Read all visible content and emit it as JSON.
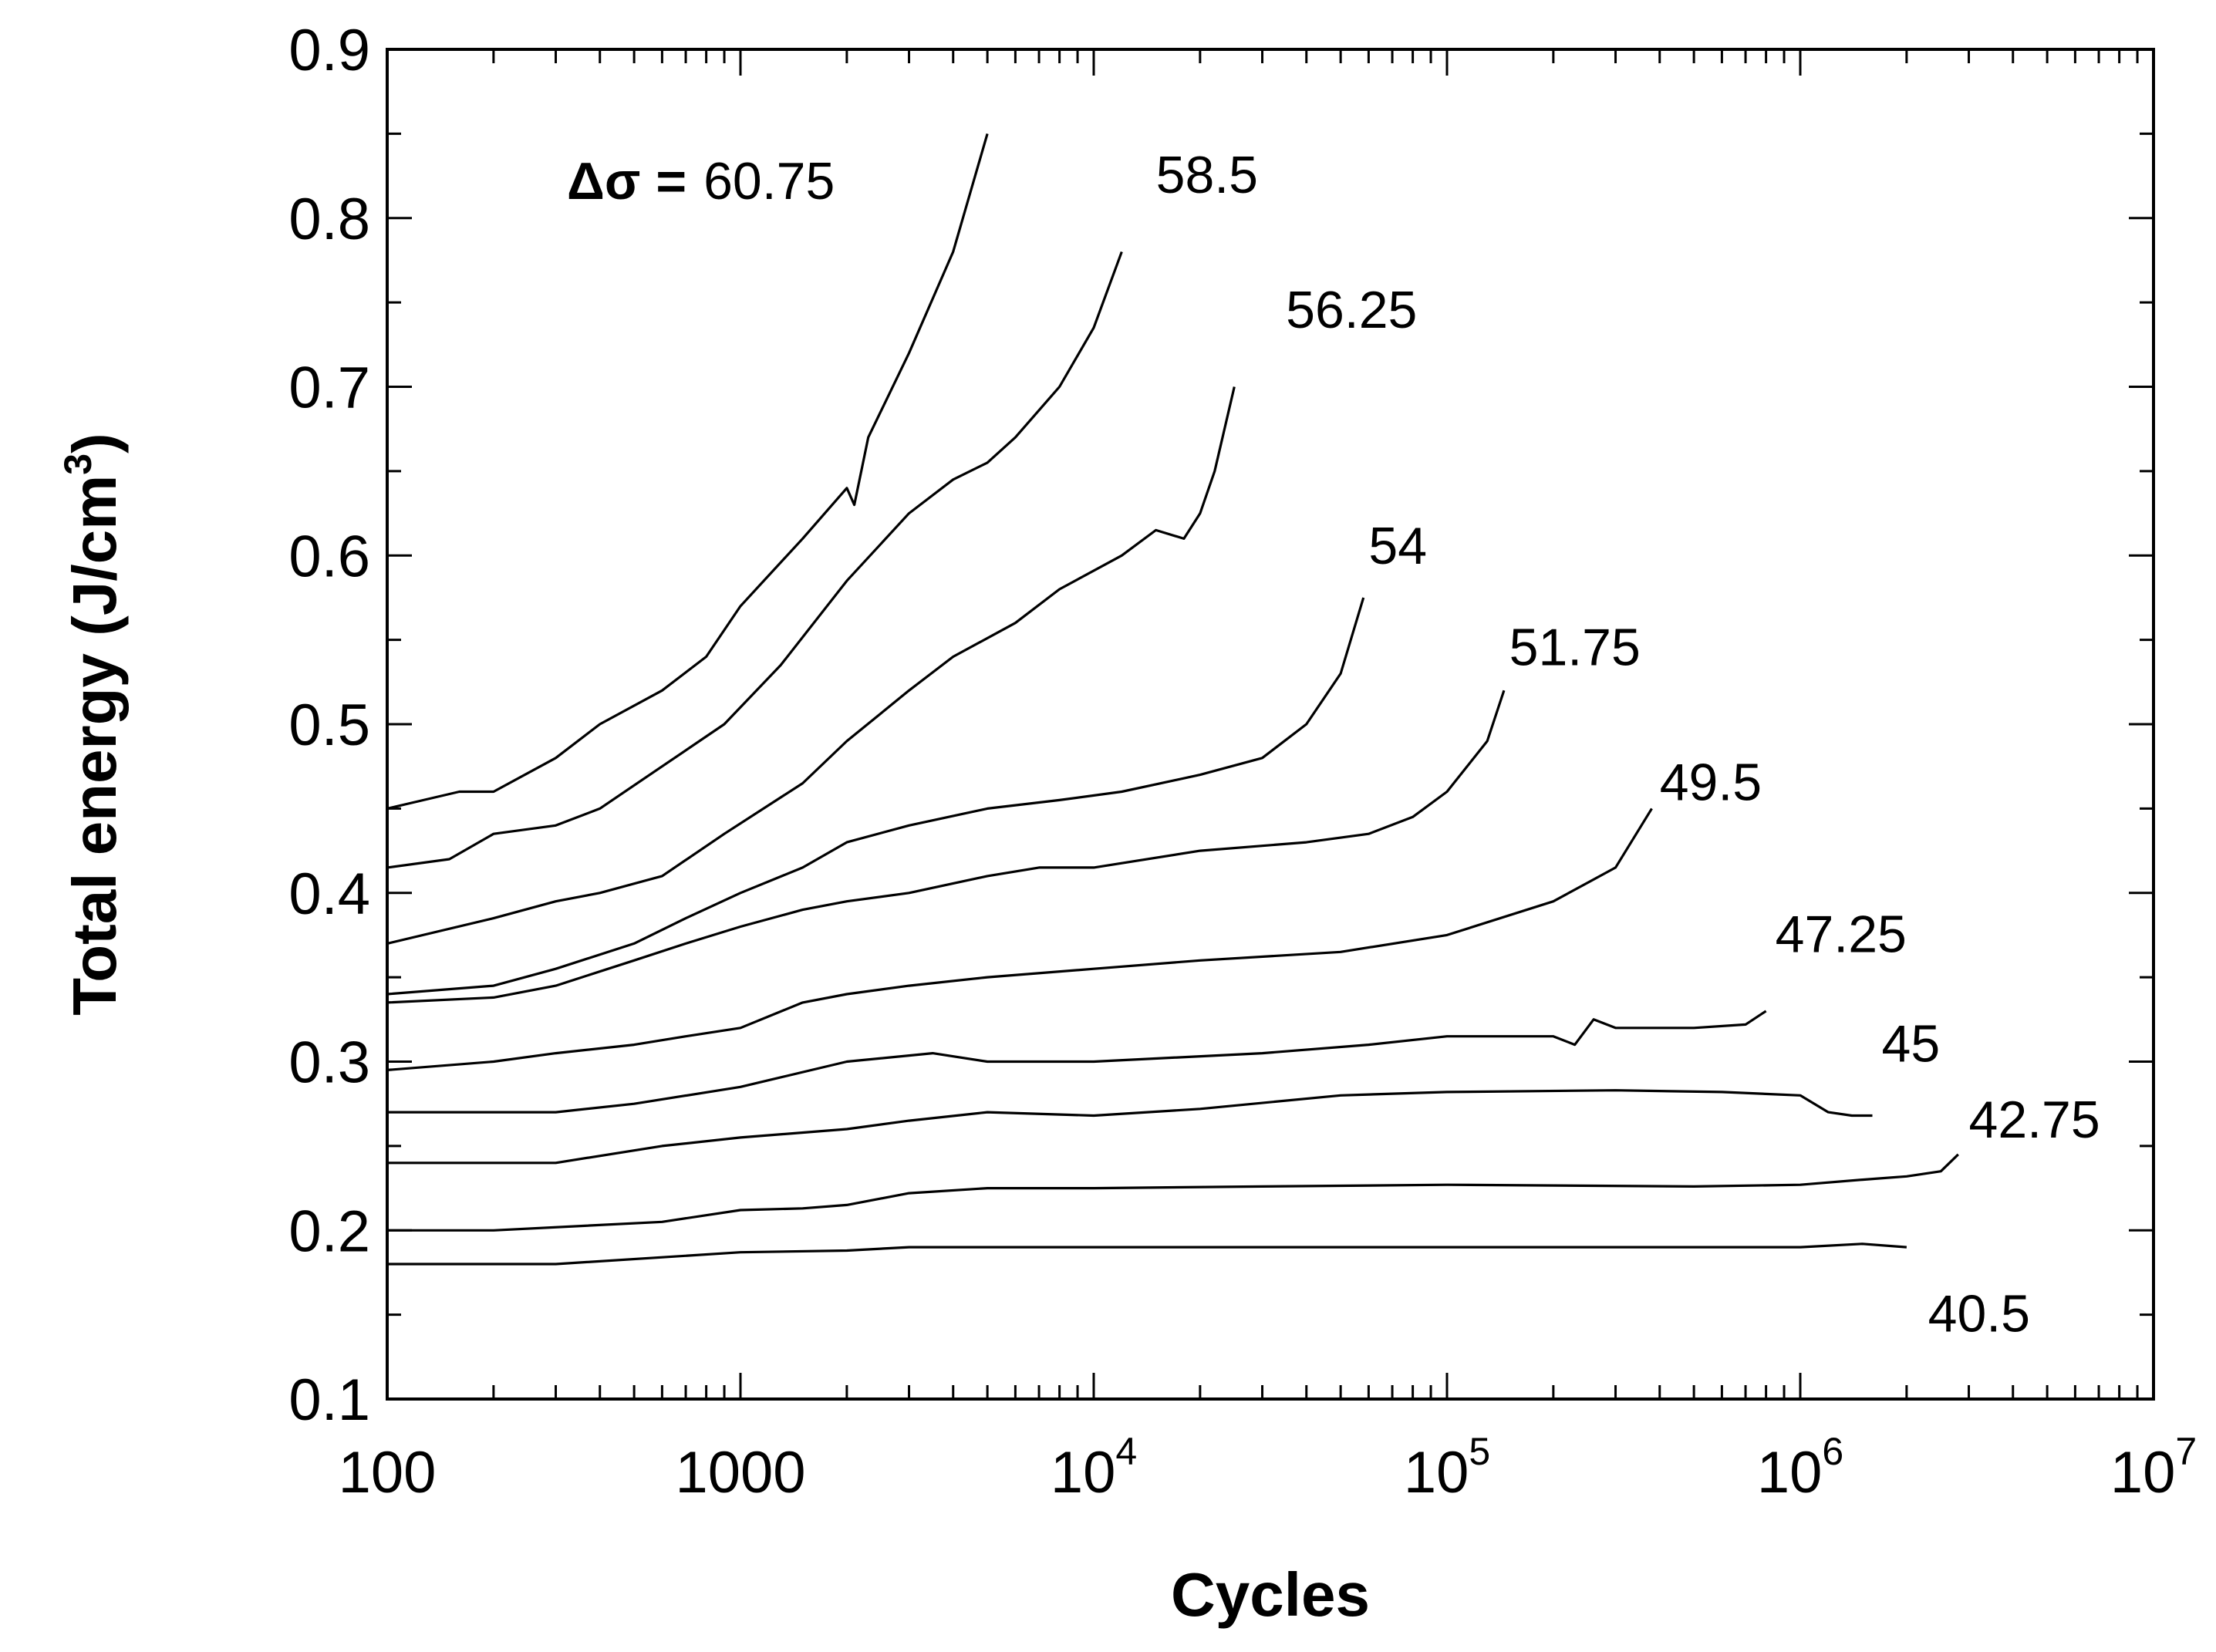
{
  "chart_data": {
    "type": "line",
    "title": "",
    "xlabel": "Cycles",
    "ylabel": "Total energy (J/cm",
    "ylabel_superscript": "3",
    "ylabel_close": ")",
    "x_scale": "log",
    "xlim": [
      100,
      10000000
    ],
    "ylim": [
      0.1,
      0.9
    ],
    "grid": false,
    "legend": "none",
    "delta_label": {
      "symbol": "Δσ",
      "equals": "="
    },
    "x_ticks": [
      {
        "value": 100,
        "mantissa": "100",
        "exponent": ""
      },
      {
        "value": 1000,
        "mantissa": "1000",
        "exponent": ""
      },
      {
        "value": 10000,
        "mantissa": "10",
        "exponent": "4"
      },
      {
        "value": 100000,
        "mantissa": "10",
        "exponent": "5"
      },
      {
        "value": 1000000,
        "mantissa": "10",
        "exponent": "6"
      },
      {
        "value": 10000000,
        "mantissa": "10",
        "exponent": "7"
      }
    ],
    "y_ticks": [
      "0.1",
      "0.2",
      "0.3",
      "0.4",
      "0.5",
      "0.6",
      "0.7",
      "0.8",
      "0.9"
    ],
    "series": [
      {
        "name": "60.75",
        "label_at": [
          130,
          0.855
        ],
        "x": [
          100,
          160,
          200,
          300,
          400,
          600,
          800,
          1000,
          1500,
          2000,
          2100,
          2300,
          3000,
          4000,
          5000
        ],
        "y": [
          0.45,
          0.46,
          0.46,
          0.48,
          0.5,
          0.52,
          0.54,
          0.57,
          0.61,
          0.64,
          0.63,
          0.67,
          0.72,
          0.78,
          0.85
        ]
      },
      {
        "name": "58.5",
        "label_at": [
          15000,
          0.815
        ],
        "x": [
          100,
          150,
          200,
          300,
          400,
          600,
          900,
          1300,
          2000,
          3000,
          4000,
          5000,
          6000,
          8000,
          10000,
          12000
        ],
        "y": [
          0.415,
          0.42,
          0.435,
          0.44,
          0.45,
          0.475,
          0.5,
          0.535,
          0.585,
          0.625,
          0.645,
          0.655,
          0.67,
          0.7,
          0.735,
          0.78
        ]
      },
      {
        "name": "56.25",
        "label_at": [
          35000,
          0.735
        ],
        "x": [
          100,
          200,
          300,
          400,
          600,
          900,
          1500,
          2000,
          3000,
          4000,
          6000,
          8000,
          12000,
          15000,
          18000,
          20000,
          22000,
          25000
        ],
        "y": [
          0.37,
          0.385,
          0.395,
          0.4,
          0.41,
          0.435,
          0.465,
          0.49,
          0.52,
          0.54,
          0.56,
          0.58,
          0.6,
          0.615,
          0.61,
          0.625,
          0.65,
          0.7
        ]
      },
      {
        "name": "54",
        "label_at": [
          60000,
          0.595
        ],
        "x": [
          100,
          200,
          300,
          500,
          700,
          1000,
          1500,
          2000,
          3000,
          5000,
          8000,
          12000,
          20000,
          30000,
          40000,
          50000,
          58000
        ],
        "y": [
          0.34,
          0.345,
          0.355,
          0.37,
          0.385,
          0.4,
          0.415,
          0.43,
          0.44,
          0.45,
          0.455,
          0.46,
          0.47,
          0.48,
          0.5,
          0.53,
          0.575
        ]
      },
      {
        "name": "51.75",
        "label_at": [
          150000,
          0.535
        ],
        "x": [
          100,
          200,
          300,
          500,
          700,
          1000,
          1500,
          2000,
          3000,
          5000,
          7000,
          10000,
          20000,
          40000,
          60000,
          80000,
          100000,
          130000,
          145000
        ],
        "y": [
          0.335,
          0.338,
          0.345,
          0.36,
          0.37,
          0.38,
          0.39,
          0.395,
          0.4,
          0.41,
          0.415,
          0.415,
          0.425,
          0.43,
          0.435,
          0.445,
          0.46,
          0.49,
          0.52
        ]
      },
      {
        "name": "49.5",
        "label_at": [
          400000,
          0.455
        ],
        "x": [
          100,
          200,
          300,
          500,
          700,
          1000,
          1500,
          2000,
          3000,
          5000,
          10000,
          20000,
          50000,
          100000,
          200000,
          300000,
          380000
        ],
        "y": [
          0.295,
          0.3,
          0.305,
          0.31,
          0.315,
          0.32,
          0.335,
          0.34,
          0.345,
          0.35,
          0.355,
          0.36,
          0.365,
          0.375,
          0.395,
          0.415,
          0.45
        ]
      },
      {
        "name": "47.25",
        "label_at": [
          850000,
          0.365
        ],
        "x": [
          100,
          300,
          500,
          1000,
          2000,
          3500,
          5000,
          10000,
          30000,
          60000,
          100000,
          200000,
          230000,
          260000,
          300000,
          500000,
          700000,
          800000
        ],
        "y": [
          0.27,
          0.27,
          0.275,
          0.285,
          0.3,
          0.305,
          0.3,
          0.3,
          0.305,
          0.31,
          0.315,
          0.315,
          0.31,
          0.325,
          0.32,
          0.32,
          0.322,
          0.33
        ]
      },
      {
        "name": "45",
        "label_at": [
          1700000,
          0.3
        ],
        "x": [
          100,
          300,
          600,
          1000,
          2000,
          3000,
          5000,
          10000,
          20000,
          50000,
          100000,
          300000,
          600000,
          1000000,
          1200000,
          1400000,
          1600000
        ],
        "y": [
          0.24,
          0.24,
          0.25,
          0.255,
          0.26,
          0.265,
          0.27,
          0.268,
          0.272,
          0.28,
          0.282,
          0.283,
          0.282,
          0.28,
          0.27,
          0.268,
          0.268
        ]
      },
      {
        "name": "42.75",
        "label_at": [
          3000000,
          0.255
        ],
        "x": [
          100,
          200,
          600,
          1000,
          1500,
          2000,
          3000,
          5000,
          10000,
          30000,
          100000,
          500000,
          1000000,
          1500000,
          2000000,
          2500000,
          2800000
        ],
        "y": [
          0.2,
          0.2,
          0.205,
          0.212,
          0.213,
          0.215,
          0.222,
          0.225,
          0.225,
          0.226,
          0.227,
          0.226,
          0.227,
          0.23,
          0.232,
          0.235,
          0.245
        ]
      },
      {
        "name": "40.5",
        "label_at": [
          2300000,
          0.14
        ],
        "x": [
          100,
          300,
          1000,
          2000,
          3000,
          5000,
          10000,
          30000,
          100000,
          500000,
          1000000,
          1500000,
          2000000
        ],
        "y": [
          0.18,
          0.18,
          0.187,
          0.188,
          0.19,
          0.19,
          0.19,
          0.19,
          0.19,
          0.19,
          0.19,
          0.192,
          0.19
        ]
      }
    ]
  }
}
